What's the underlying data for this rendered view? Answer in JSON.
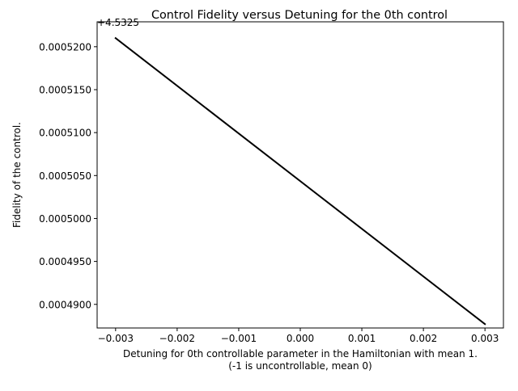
{
  "chart_data": {
    "type": "line",
    "title": "Control Fidelity versus Detuning for the 0th control",
    "xlabel_line1": "Detuning for 0th controllable parameter in the Hamiltonian with mean 1.",
    "xlabel_line2": "(-1 is uncontrollable, mean 0)",
    "ylabel": "Fidelity of the control.",
    "y_offset_label": "+4.5325",
    "y_offset": 4.5325,
    "xlim": [
      -0.0033,
      0.0033
    ],
    "ylim": [
      0.00048725,
      0.0005229
    ],
    "x_ticks": [
      -0.003,
      -0.002,
      -0.001,
      0.0,
      0.001,
      0.002,
      0.003
    ],
    "x_tick_labels": [
      "−0.003",
      "−0.002",
      "−0.001",
      "0.000",
      "0.001",
      "0.002",
      "0.003"
    ],
    "y_ticks": [
      0.00049,
      0.000495,
      0.0005,
      0.000505,
      0.00051,
      0.000515,
      0.00052
    ],
    "y_tick_labels": [
      "0.0004900",
      "0.0004950",
      "0.0005000",
      "0.0005050",
      "0.0005100",
      "0.0005150",
      "0.0005200"
    ],
    "grid": false,
    "series": [
      {
        "color": "#000000",
        "x": [
          -0.003,
          0.003
        ],
        "y": [
          0.000521,
          0.0004877
        ]
      }
    ]
  }
}
